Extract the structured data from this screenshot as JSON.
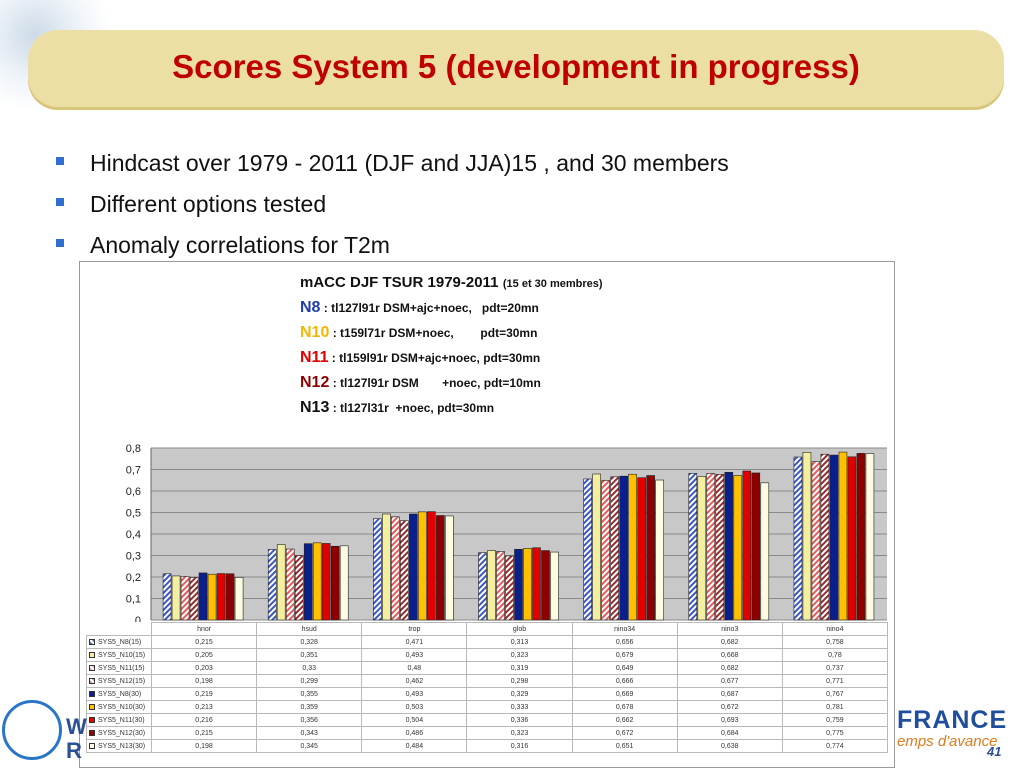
{
  "title": "Scores System 5 (development in progress)",
  "bullets": [
    "Hindcast over 1979 - 2011 (DJF and JJA)15 , and 30 members",
    "Different options tested",
    "Anomaly correlations for T2m"
  ],
  "caption": {
    "main": "mACC DJF TSUR 1979-2011",
    "main_small": "(15 et 30 membres)",
    "lines": [
      {
        "code": "N8",
        "sep": " : ",
        "desc": "tl127l91r DSM+ajc+noec,   pdt=20mn"
      },
      {
        "code": "N10",
        "sep": " : ",
        "desc": "t159l71r DSM+noec,        pdt=30mn"
      },
      {
        "code": "N11",
        "sep": " : ",
        "desc": "tl159l91r DSM+ajc+noec, pdt=30mn"
      },
      {
        "code": "N12",
        "sep": " : ",
        "desc": "tl127l91r DSM       +noec, pdt=10mn"
      },
      {
        "code": "N13",
        "sep": " : ",
        "desc": "tl127l31r  +noec, pdt=30mn"
      }
    ]
  },
  "chart_data": {
    "type": "bar",
    "categories": [
      "hnor",
      "hsud",
      "trop",
      "glob",
      "nino34",
      "nino3",
      "nino4"
    ],
    "ylim": [
      0,
      0.8
    ],
    "yticks": [
      "0",
      "0,1",
      "0,2",
      "0,3",
      "0,4",
      "0,5",
      "0,6",
      "0,7",
      "0,8"
    ],
    "grid": true,
    "legend": "table-below",
    "series": [
      {
        "name": "SYS5_N8(15)",
        "color": "#5b78d6",
        "pattern": "hatch-blue",
        "values": [
          0.215,
          0.328,
          0.471,
          0.313,
          0.656,
          0.682,
          0.758
        ],
        "labels": [
          "0,215",
          "0,328",
          "0,471",
          "0,313",
          "0,656",
          "0,682",
          "0,758"
        ]
      },
      {
        "name": "SYS5_N10(15)",
        "color": "#f4efa0",
        "pattern": "solid",
        "values": [
          0.205,
          0.351,
          0.493,
          0.323,
          0.679,
          0.668,
          0.78
        ],
        "labels": [
          "0,205",
          "0,351",
          "0,493",
          "0,323",
          "0,679",
          "0,668",
          "0,78"
        ]
      },
      {
        "name": "SYS5_N11(15)",
        "color": "#f3a9a9",
        "pattern": "hatch-red",
        "values": [
          0.203,
          0.33,
          0.48,
          0.319,
          0.649,
          0.682,
          0.737
        ],
        "labels": [
          "0,203",
          "0,33",
          "0,48",
          "0,319",
          "0,649",
          "0,682",
          "0,737"
        ]
      },
      {
        "name": "SYS5_N12(15)",
        "color": "#c88d8d",
        "pattern": "hatch-darkred",
        "values": [
          0.198,
          0.299,
          0.462,
          0.298,
          0.666,
          0.677,
          0.771
        ],
        "labels": [
          "0,198",
          "0,299",
          "0,462",
          "0,298",
          "0,666",
          "0,677",
          "0,771"
        ]
      },
      {
        "name": "SYS5_N8(30)",
        "color": "#0a1e8c",
        "pattern": "solid",
        "values": [
          0.219,
          0.355,
          0.493,
          0.329,
          0.669,
          0.687,
          0.767
        ],
        "labels": [
          "0,219",
          "0,355",
          "0,493",
          "0,329",
          "0,669",
          "0,687",
          "0,767"
        ]
      },
      {
        "name": "SYS5_N10(30)",
        "color": "#ffc000",
        "pattern": "solid",
        "values": [
          0.213,
          0.359,
          0.503,
          0.333,
          0.678,
          0.672,
          0.781
        ],
        "labels": [
          "0,213",
          "0,359",
          "0,503",
          "0,333",
          "0,678",
          "0,672",
          "0,781"
        ]
      },
      {
        "name": "SYS5_N11(30)",
        "color": "#e00000",
        "pattern": "solid",
        "values": [
          0.216,
          0.356,
          0.504,
          0.336,
          0.662,
          0.693,
          0.759
        ],
        "labels": [
          "0,216",
          "0,356",
          "0,504",
          "0,336",
          "0,662",
          "0,693",
          "0,759"
        ]
      },
      {
        "name": "SYS5_N12(30)",
        "color": "#8c0000",
        "pattern": "solid",
        "values": [
          0.215,
          0.343,
          0.486,
          0.323,
          0.672,
          0.684,
          0.775
        ],
        "labels": [
          "0,215",
          "0,343",
          "0,486",
          "0,323",
          "0,672",
          "0,684",
          "0,775"
        ]
      },
      {
        "name": "SYS5_N13(30)",
        "color": "#fdfbe0",
        "pattern": "solid",
        "values": [
          0.198,
          0.345,
          0.484,
          0.316,
          0.651,
          0.638,
          0.774
        ],
        "labels": [
          "0,198",
          "0,345",
          "0,484",
          "0,316",
          "0,651",
          "0,638",
          "0,774"
        ]
      }
    ]
  },
  "footer": {
    "left_logo": "W",
    "left_logo_line2": "R",
    "right_logo": "FRANCE",
    "right_tagline": "emps d'avance",
    "page_number": "41"
  },
  "colors": {
    "title": "#c00000",
    "title_band": "#ecdfa6",
    "bullet": "#2f6fd0",
    "plot_bg": "#c8c8c8"
  }
}
